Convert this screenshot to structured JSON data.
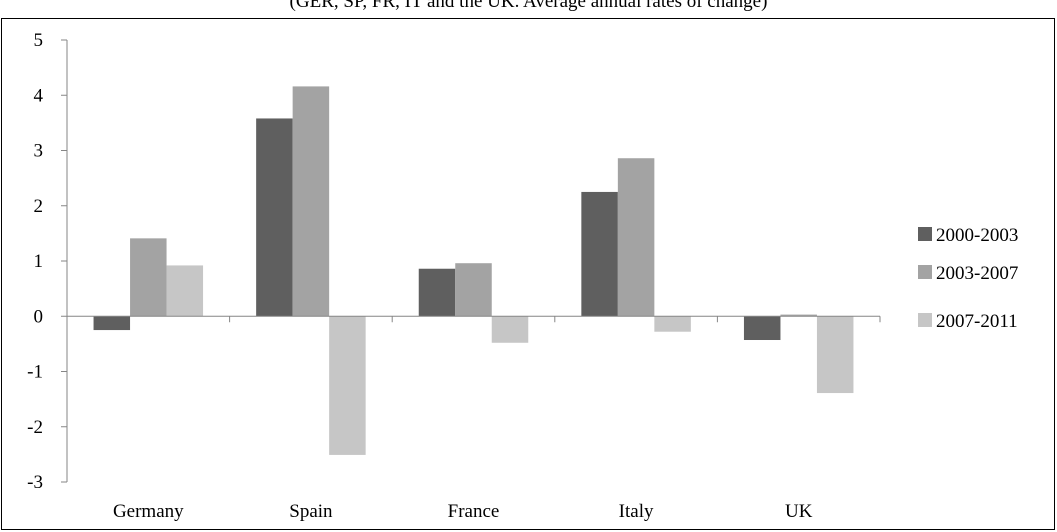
{
  "chart_data": {
    "type": "bar",
    "subtitle": "(GER, SP, FR, IT and the UK. Average annual rates of change)",
    "categories": [
      "Germany",
      "Spain",
      "France",
      "Italy",
      "UK"
    ],
    "series": [
      {
        "name": "2000-2003",
        "color": "#5f5f5f",
        "values": [
          -0.25,
          3.58,
          0.86,
          2.25,
          -0.43
        ]
      },
      {
        "name": "2003-2007",
        "color": "#a3a3a3",
        "values": [
          1.41,
          4.16,
          0.96,
          2.86,
          0.03
        ]
      },
      {
        "name": "2007-2011",
        "color": "#c6c6c6",
        "values": [
          0.92,
          -2.51,
          -0.48,
          -0.28,
          -1.39
        ]
      }
    ],
    "ylim": [
      -3,
      5
    ],
    "yticks": [
      5,
      4,
      3,
      2,
      1,
      0,
      -1,
      -2,
      -3
    ],
    "ytick_labels": [
      "5",
      "4",
      "3",
      "2",
      "1",
      "0",
      "-1",
      "-2",
      "-3"
    ],
    "grid": false,
    "legend_position": "right"
  }
}
